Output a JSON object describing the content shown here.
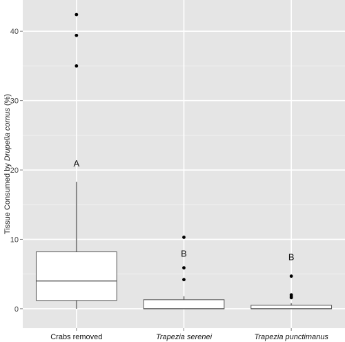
{
  "chart_data": {
    "type": "boxplot",
    "title": "",
    "xlabel": "",
    "ylabel": {
      "prefix": "Tissue Consumed by ",
      "species": "Drupella cornus",
      "suffix": " (%)"
    },
    "ylim": [
      -2.8,
      44.5
    ],
    "yticks": [
      0,
      10,
      20,
      30,
      40
    ],
    "grid": true,
    "legend": "none",
    "colors": {
      "panel": "#e5e5e5",
      "grid_major": "#ffffff",
      "grid_minor": "#f2f2f2",
      "box_fill": "#ffffff",
      "box_stroke": "#555555",
      "whisker": "#7f7f7f",
      "outlier": "#000000"
    },
    "categories": [
      {
        "label": "Crabs removed",
        "italic": false
      },
      {
        "label": "Trapezia serenei",
        "italic": true
      },
      {
        "label": "Trapezia punctimanus",
        "italic": true
      }
    ],
    "boxes": [
      {
        "q1": 1.2,
        "median": 4.0,
        "q3": 8.2,
        "whisker_low": 0.0,
        "whisker_high": 18.3,
        "outliers": [
          35.0,
          39.4,
          42.4
        ],
        "group_letter": "A",
        "letter_y": 21.0
      },
      {
        "q1": 0.0,
        "median": 0.0,
        "q3": 1.3,
        "whisker_low": 0.0,
        "whisker_high": 1.8,
        "outliers": [
          4.2,
          5.9,
          10.3
        ],
        "group_letter": "B",
        "letter_y": 8.0
      },
      {
        "q1": 0.0,
        "median": 0.0,
        "q3": 0.5,
        "whisker_low": 0.0,
        "whisker_high": 0.8,
        "outliers": [
          1.6,
          1.8,
          2.0,
          4.7
        ],
        "group_letter": "B",
        "letter_y": 7.5
      }
    ]
  }
}
